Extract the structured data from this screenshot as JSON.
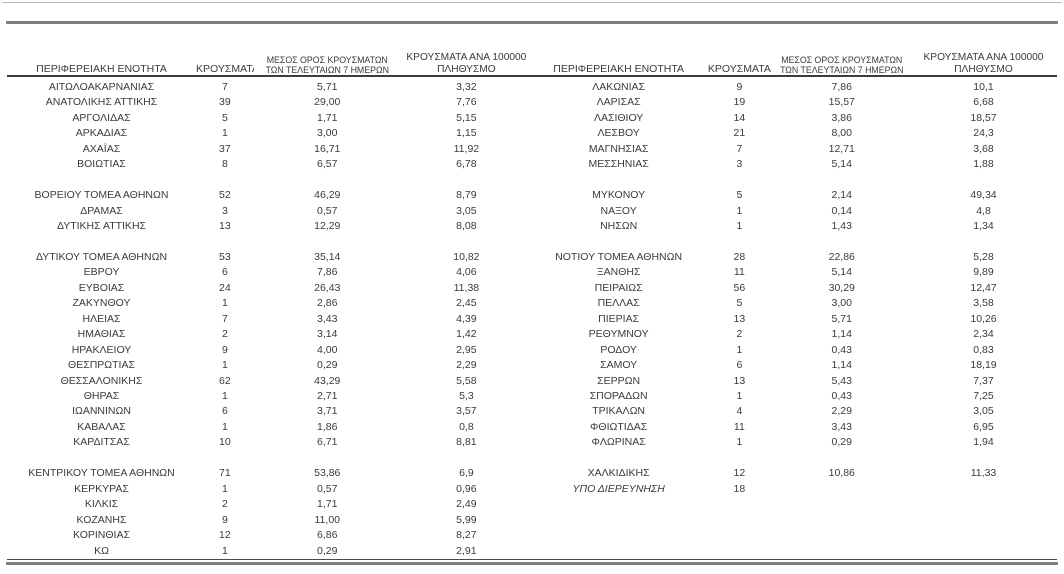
{
  "columns": {
    "region": "ΠΕΡΙΦΕΡΕΙΑΚΗ ΕΝΟΤΗΤΑ",
    "cases": "ΚΡΟΥΣΜΑΤΑ",
    "avg7_line1": "ΜΕΣΟΣ ΟΡΟΣ ΚΡΟΥΣΜΑΤΩΝ",
    "avg7_line2": "ΤΩΝ ΤΕΛΕΥΤΑΙΩΝ 7 ΗΜΕΡΩΝ",
    "per100k_line1": "ΚΡΟΥΣΜΑΤΑ ΑΝΑ 100000",
    "per100k_line2": "ΠΛΗΘΥΣΜΟ"
  },
  "colors": {
    "text": "#3a3a3a",
    "rule_thick": "#7f7f7f",
    "rule_thin_top": "#b8b8b8",
    "rule_thin_bottom": "#4a4a4a",
    "header_underline": "#3c3c3c"
  },
  "tables": [
    {
      "rows": [
        [
          "ΑΙΤΩΛΟΑΚΑΡΝΑΝΙΑΣ",
          "7",
          "5,71",
          "3,32"
        ],
        [
          "ΑΝΑΤΟΛΙΚΗΣ ΑΤΤΙΚΗΣ",
          "39",
          "29,00",
          "7,76"
        ],
        [
          "ΑΡΓΟΛΙΔΑΣ",
          "5",
          "1,71",
          "5,15"
        ],
        [
          "ΑΡΚΑΔΙΑΣ",
          "1",
          "3,00",
          "1,15"
        ],
        [
          "ΑΧΑΪΑΣ",
          "37",
          "16,71",
          "11,92"
        ],
        [
          "ΒΟΙΩΤΙΑΣ",
          "8",
          "6,57",
          "6,78"
        ],
        [
          "",
          "",
          "",
          ""
        ],
        [
          "ΒΟΡΕΙΟΥ ΤΟΜΕΑ ΑΘΗΝΩΝ",
          "52",
          "46,29",
          "8,79"
        ],
        [
          "ΔΡΑΜΑΣ",
          "3",
          "0,57",
          "3,05"
        ],
        [
          "ΔΥΤΙΚΗΣ ΑΤΤΙΚΗΣ",
          "13",
          "12,29",
          "8,08"
        ],
        [
          "",
          "",
          "",
          ""
        ],
        [
          "ΔΥΤΙΚΟΥ ΤΟΜΕΑ ΑΘΗΝΩΝ",
          "53",
          "35,14",
          "10,82"
        ],
        [
          "ΕΒΡΟΥ",
          "6",
          "7,86",
          "4,06"
        ],
        [
          "ΕΥΒΟΙΑΣ",
          "24",
          "26,43",
          "11,38"
        ],
        [
          "ΖΑΚΥΝΘΟΥ",
          "1",
          "2,86",
          "2,45"
        ],
        [
          "ΗΛΕΙΑΣ",
          "7",
          "3,43",
          "4,39"
        ],
        [
          "ΗΜΑΘΙΑΣ",
          "2",
          "3,14",
          "1,42"
        ],
        [
          "ΗΡΑΚΛΕΙΟΥ",
          "9",
          "4,00",
          "2,95"
        ],
        [
          "ΘΕΣΠΡΩΤΙΑΣ",
          "1",
          "0,29",
          "2,29"
        ],
        [
          "ΘΕΣΣΑΛΟΝΙΚΗΣ",
          "62",
          "43,29",
          "5,58"
        ],
        [
          "ΘΗΡΑΣ",
          "1",
          "2,71",
          "5,3"
        ],
        [
          "ΙΩΑΝΝΙΝΩΝ",
          "6",
          "3,71",
          "3,57"
        ],
        [
          "ΚΑΒΑΛΑΣ",
          "1",
          "1,86",
          "0,8"
        ],
        [
          "ΚΑΡΔΙΤΣΑΣ",
          "10",
          "6,71",
          "8,81"
        ],
        [
          "",
          "",
          "",
          ""
        ],
        [
          "ΚΕΝΤΡΙΚΟΥ ΤΟΜΕΑ ΑΘΗΝΩΝ",
          "71",
          "53,86",
          "6,9"
        ],
        [
          "ΚΕΡΚΥΡΑΣ",
          "1",
          "0,57",
          "0,96"
        ],
        [
          "ΚΙΛΚΙΣ",
          "2",
          "1,71",
          "2,49"
        ],
        [
          "ΚΟΖΑΝΗΣ",
          "9",
          "11,00",
          "5,99"
        ],
        [
          "ΚΟΡΙΝΘΙΑΣ",
          "12",
          "6,86",
          "8,27"
        ],
        [
          "ΚΩ",
          "1",
          "0,29",
          "2,91"
        ]
      ]
    },
    {
      "rows": [
        [
          "ΛΑΚΩΝΙΑΣ",
          "9",
          "7,86",
          "10,1"
        ],
        [
          "ΛΑΡΙΣΑΣ",
          "19",
          "15,57",
          "6,68"
        ],
        [
          "ΛΑΣΙΘΙΟΥ",
          "14",
          "3,86",
          "18,57"
        ],
        [
          "ΛΕΣΒΟΥ",
          "21",
          "8,00",
          "24,3"
        ],
        [
          "ΜΑΓΝΗΣΙΑΣ",
          "7",
          "12,71",
          "3,68"
        ],
        [
          "ΜΕΣΣΗΝΙΑΣ",
          "3",
          "5,14",
          "1,88"
        ],
        [
          "",
          "",
          "",
          ""
        ],
        [
          "ΜΥΚΟΝΟΥ",
          "5",
          "2,14",
          "49,34"
        ],
        [
          "ΝΑΞΟΥ",
          "1",
          "0,14",
          "4,8"
        ],
        [
          "ΝΗΣΩΝ",
          "1",
          "1,43",
          "1,34"
        ],
        [
          "",
          "",
          "",
          ""
        ],
        [
          "ΝΟΤΙΟΥ ΤΟΜΕΑ ΑΘΗΝΩΝ",
          "28",
          "22,86",
          "5,28"
        ],
        [
          "ΞΑΝΘΗΣ",
          "11",
          "5,14",
          "9,89"
        ],
        [
          "ΠΕΙΡΑΙΩΣ",
          "56",
          "30,29",
          "12,47"
        ],
        [
          "ΠΕΛΛΑΣ",
          "5",
          "3,00",
          "3,58"
        ],
        [
          "ΠΙΕΡΙΑΣ",
          "13",
          "5,71",
          "10,26"
        ],
        [
          "ΡΕΘΥΜΝΟΥ",
          "2",
          "1,14",
          "2,34"
        ],
        [
          "ΡΟΔΟΥ",
          "1",
          "0,43",
          "0,83"
        ],
        [
          "ΣΑΜΟΥ",
          "6",
          "1,14",
          "18,19"
        ],
        [
          "ΣΕΡΡΩΝ",
          "13",
          "5,43",
          "7,37"
        ],
        [
          "ΣΠΟΡΑΔΩΝ",
          "1",
          "0,43",
          "7,25"
        ],
        [
          "ΤΡΙΚΑΛΩΝ",
          "4",
          "2,29",
          "3,05"
        ],
        [
          "ΦΘΙΩΤΙΔΑΣ",
          "11",
          "3,43",
          "6,95"
        ],
        [
          "ΦΛΩΡΙΝΑΣ",
          "1",
          "0,29",
          "1,94"
        ],
        [
          "",
          "",
          "",
          ""
        ],
        [
          "ΧΑΛΚΙΔΙΚΗΣ",
          "12",
          "10,86",
          "11,33"
        ],
        [
          "ΥΠΟ ΔΙΕΡΕΥΝΗΣΗ",
          "18",
          "",
          "",
          "italic"
        ]
      ]
    }
  ]
}
